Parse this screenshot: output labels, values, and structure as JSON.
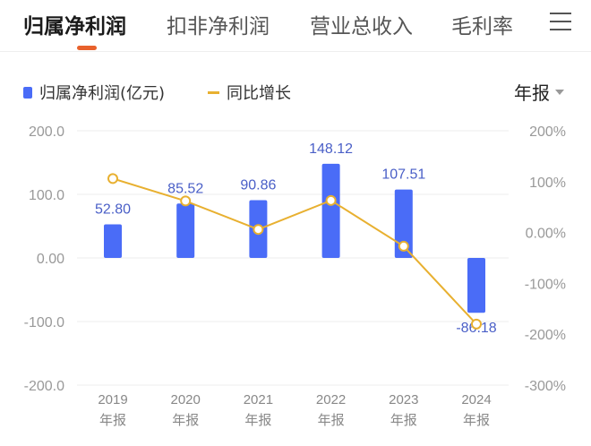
{
  "tabs": [
    {
      "label": "归属净利润",
      "active": true
    },
    {
      "label": "扣非净利润"
    },
    {
      "label": "营业总收入"
    },
    {
      "label": "毛利率"
    }
  ],
  "menu_icon": "hamburger-menu-icon",
  "period_selector": {
    "value": "年报"
  },
  "colors": {
    "bar": "#4a6cf7",
    "line": "#e8b030",
    "accent": "#e8612c"
  },
  "chart_data": {
    "type": "bar+line",
    "categories": [
      "2019",
      "2020",
      "2021",
      "2022",
      "2023",
      "2024"
    ],
    "category_sublabel": "年报",
    "series": [
      {
        "name": "归属净利润(亿元)",
        "type": "bar",
        "axis": "left",
        "values": [
          52.8,
          85.52,
          90.86,
          148.12,
          107.51,
          -86.18
        ],
        "labels": [
          "52.80",
          "85.52",
          "90.86",
          "148.12",
          "107.51",
          "-86.18"
        ]
      },
      {
        "name": "同比增长",
        "type": "line",
        "axis": "right",
        "values": [
          106,
          62,
          6,
          63,
          -27,
          -180
        ]
      }
    ],
    "left_axis": {
      "ylim": [
        -200,
        200
      ],
      "ticks": [
        "200.0",
        "100.0",
        "0.00",
        "-100.0",
        "-200.0"
      ]
    },
    "right_axis": {
      "ylim": [
        -300,
        200
      ],
      "unit": "%",
      "ticks": [
        "200%",
        "100%",
        "0.00%",
        "-100%",
        "-200%",
        "-300%"
      ]
    },
    "grid": true,
    "legend": "top-left"
  }
}
